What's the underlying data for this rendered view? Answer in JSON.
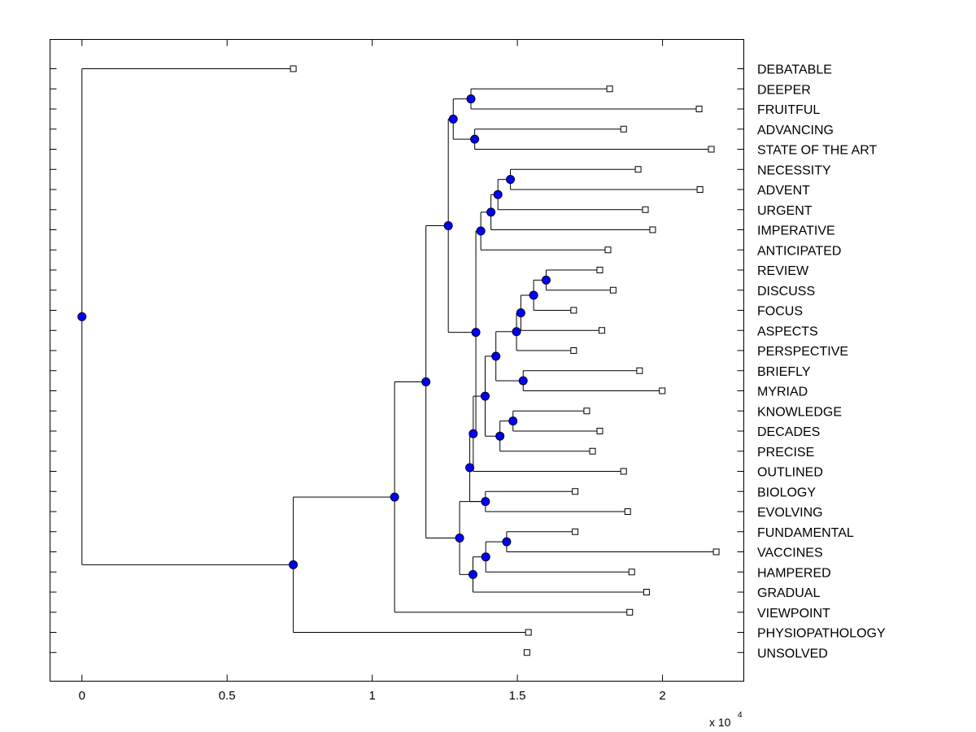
{
  "chart_data": {
    "type": "dendrogram",
    "title": "",
    "xlabel": "",
    "ylabel": "",
    "xlim": [
      -1100,
      22800
    ],
    "x_ticks": [
      {
        "value": 0,
        "label": "0"
      },
      {
        "value": 5000,
        "label": "0.5"
      },
      {
        "value": 10000,
        "label": "1"
      },
      {
        "value": 15000,
        "label": "1.5"
      },
      {
        "value": 20000,
        "label": "2"
      }
    ],
    "x_multiplier": {
      "base": "x 10",
      "exponent": "4"
    },
    "leaves": [
      {
        "label": "DEBATABLE",
        "x": 7280
      },
      {
        "label": "DEEPER",
        "x": 18180
      },
      {
        "label": "FRUITFUL",
        "x": 21260
      },
      {
        "label": "ADVANCING",
        "x": 18660
      },
      {
        "label": "STATE OF THE ART",
        "x": 21680
      },
      {
        "label": "NECESSITY",
        "x": 19160
      },
      {
        "label": "ADVENT",
        "x": 21290
      },
      {
        "label": "URGENT",
        "x": 19410
      },
      {
        "label": "IMPERATIVE",
        "x": 19660
      },
      {
        "label": "ANTICIPATED",
        "x": 18120
      },
      {
        "label": "REVIEW",
        "x": 17840
      },
      {
        "label": "DISCUSS",
        "x": 18300
      },
      {
        "label": "FOCUS",
        "x": 16940
      },
      {
        "label": "ASPECTS",
        "x": 17910
      },
      {
        "label": "PERSPECTIVE",
        "x": 16940
      },
      {
        "label": "BRIEFLY",
        "x": 19210
      },
      {
        "label": "MYRIAD",
        "x": 19990
      },
      {
        "label": "KNOWLEDGE",
        "x": 17390
      },
      {
        "label": "DECADES",
        "x": 17840
      },
      {
        "label": "PRECISE",
        "x": 17590
      },
      {
        "label": "OUTLINED",
        "x": 18660
      },
      {
        "label": "BIOLOGY",
        "x": 16990
      },
      {
        "label": "EVOLVING",
        "x": 18800
      },
      {
        "label": "FUNDAMENTAL",
        "x": 16990
      },
      {
        "label": "VACCINES",
        "x": 21850
      },
      {
        "label": "HAMPERED",
        "x": 18940
      },
      {
        "label": "GRADUAL",
        "x": 19450
      },
      {
        "label": "VIEWPOINT",
        "x": 18870
      },
      {
        "label": "PHYSIOPATHOLOGY",
        "x": 15380
      },
      {
        "label": "UNSOLVED",
        "x": 15330
      }
    ],
    "nodes": [
      {
        "id": "n_deeper_fruitful",
        "x": 13400,
        "children": [
          "L1",
          "L2"
        ]
      },
      {
        "id": "n_advancing_state",
        "x": 13530,
        "children": [
          "L3",
          "L4"
        ]
      },
      {
        "id": "n_top4",
        "x": 12790,
        "children": [
          "n_deeper_fruitful",
          "n_advancing_state"
        ]
      },
      {
        "id": "n_necessity_advent",
        "x": 14760,
        "children": [
          "L5",
          "L6"
        ]
      },
      {
        "id": "n_urgent",
        "x": 14330,
        "children": [
          "n_necessity_advent",
          "L7"
        ]
      },
      {
        "id": "n_imperative",
        "x": 14090,
        "children": [
          "n_urgent",
          "L8"
        ]
      },
      {
        "id": "n_anticipated",
        "x": 13740,
        "children": [
          "n_imperative",
          "L9"
        ]
      },
      {
        "id": "n_review_discuss",
        "x": 15990,
        "children": [
          "L10",
          "L11"
        ]
      },
      {
        "id": "n_focus",
        "x": 15560,
        "children": [
          "n_review_discuss",
          "L12"
        ]
      },
      {
        "id": "n_aspects",
        "x": 15120,
        "children": [
          "n_focus",
          "L13"
        ]
      },
      {
        "id": "n_perspective",
        "x": 14970,
        "children": [
          "n_aspects",
          "L14"
        ]
      },
      {
        "id": "n_briefly_myriad",
        "x": 15200,
        "children": [
          "L15",
          "L16"
        ]
      },
      {
        "id": "n_pb",
        "x": 14260,
        "children": [
          "n_perspective",
          "n_briefly_myriad"
        ]
      },
      {
        "id": "n_knowledge_decades",
        "x": 14850,
        "children": [
          "L17",
          "L18"
        ]
      },
      {
        "id": "n_precise",
        "x": 14400,
        "children": [
          "n_knowledge_decades",
          "L19"
        ]
      },
      {
        "id": "n_mid",
        "x": 13890,
        "children": [
          "n_pb",
          "n_precise"
        ]
      },
      {
        "id": "n_outlined",
        "x": 13480,
        "children": [
          "n_mid",
          "L20"
        ]
      },
      {
        "id": "n_anticipated_mid",
        "x": 13570,
        "children": [
          "n_anticipated",
          "n_outlined"
        ]
      },
      {
        "id": "n_top_block",
        "x": 12620,
        "children": [
          "n_top4",
          "n_anticipated_mid"
        ]
      },
      {
        "id": "n_biology_evolving",
        "x": 13900,
        "children": [
          "L21",
          "L22"
        ]
      },
      {
        "id": "n_outlined_bio",
        "x": 13360,
        "children": [
          "n_outlined",
          "n_biology_evolving"
        ]
      },
      {
        "id": "n_fund_vaccines",
        "x": 14630,
        "children": [
          "L23",
          "L24"
        ]
      },
      {
        "id": "n_hampered",
        "x": 13910,
        "children": [
          "n_fund_vaccines",
          "L25"
        ]
      },
      {
        "id": "n_gradual",
        "x": 13470,
        "children": [
          "n_hampered",
          "L26"
        ]
      },
      {
        "id": "n_evolving_gradual",
        "x": 13010,
        "children": [
          "n_biology_evolving",
          "n_gradual"
        ]
      },
      {
        "id": "n_big",
        "x": 11850,
        "children": [
          "n_top_block",
          "n_evolving_gradual"
        ]
      },
      {
        "id": "n_viewpoint",
        "x": 10770,
        "children": [
          "n_big",
          "L27"
        ]
      },
      {
        "id": "n_physio",
        "x": 7280,
        "children": [
          "n_viewpoint",
          "L28"
        ]
      },
      {
        "id": "n_root",
        "x": 0,
        "children": [
          "L0",
          "n_physio"
        ]
      }
    ]
  }
}
